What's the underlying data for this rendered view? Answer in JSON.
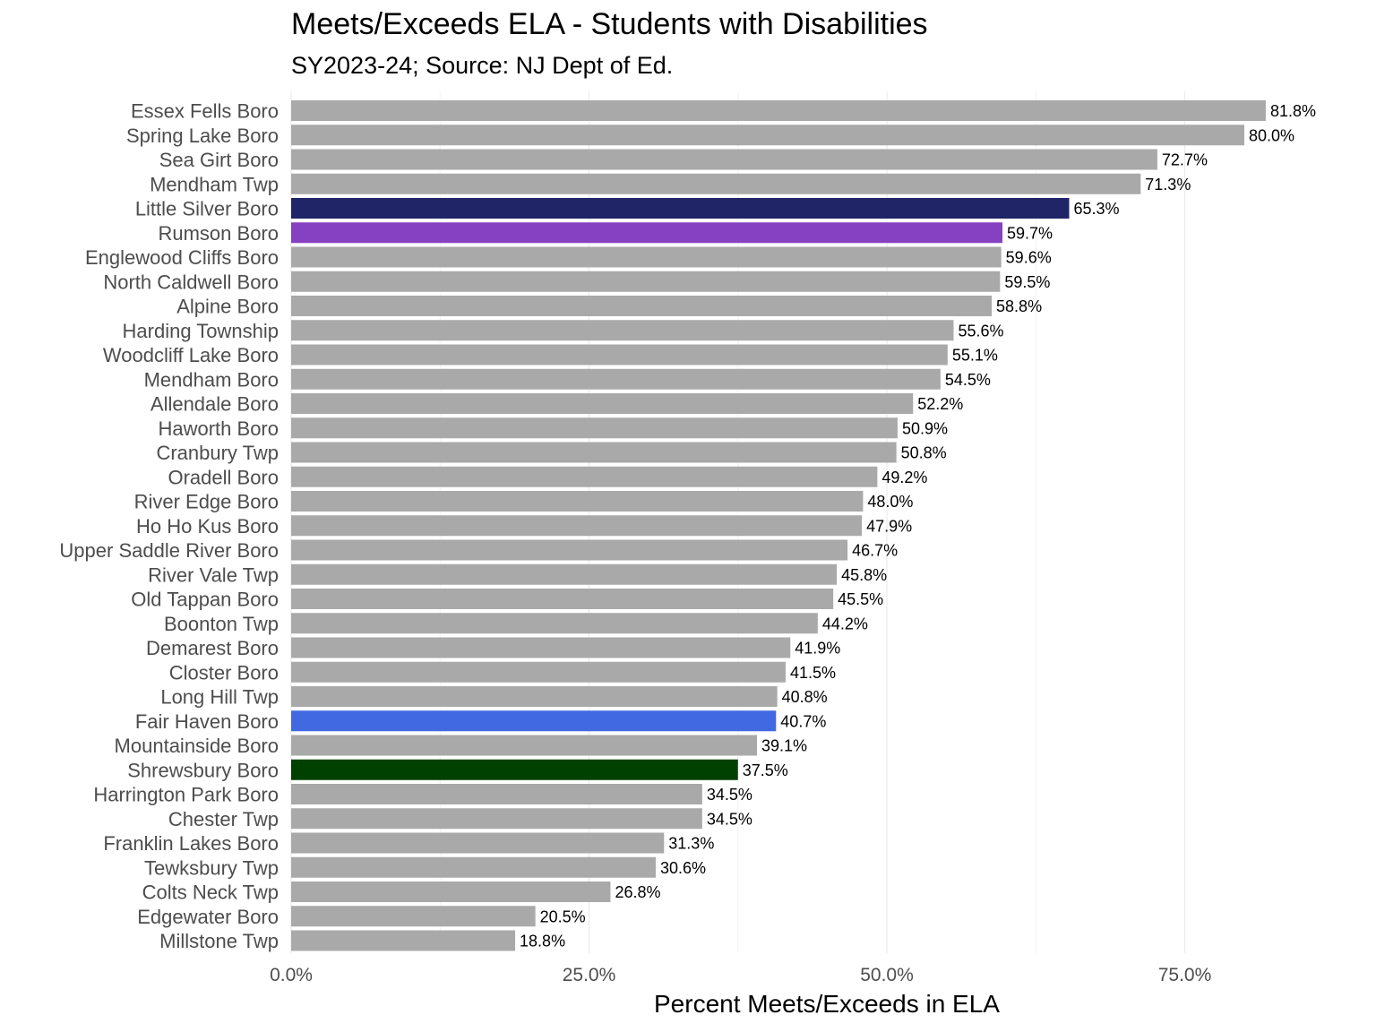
{
  "chart_data": {
    "type": "bar",
    "orientation": "horizontal",
    "title": "Meets/Exceeds ELA - Students with Disabilities",
    "subtitle": "SY2023-24; Source: NJ Dept of Ed.",
    "xlabel": "Percent Meets/Exceeds in ELA",
    "ylabel": "",
    "xlim": [
      0,
      0.85
    ],
    "xticks": [
      0,
      0.25,
      0.5,
      0.75
    ],
    "xtick_labels": [
      "0.0%",
      "25.0%",
      "50.0%",
      "75.0%"
    ],
    "grid": true,
    "legend": "none",
    "default_color": "#a9a9a9",
    "categories": [
      "Essex Fells Boro",
      "Spring Lake Boro",
      "Sea Girt Boro",
      "Mendham Twp",
      "Little Silver Boro",
      "Rumson Boro",
      "Englewood Cliffs Boro",
      "North Caldwell Boro",
      "Alpine Boro",
      "Harding Township",
      "Woodcliff Lake Boro",
      "Mendham Boro",
      "Allendale Boro",
      "Haworth Boro",
      "Cranbury Twp",
      "Oradell Boro",
      "River Edge Boro",
      "Ho Ho Kus Boro",
      "Upper Saddle River Boro",
      "River Vale Twp",
      "Old Tappan Boro",
      "Boonton Twp",
      "Demarest Boro",
      "Closter Boro",
      "Long Hill Twp",
      "Fair Haven Boro",
      "Mountainside Boro",
      "Shrewsbury Boro",
      "Harrington Park Boro",
      "Chester Twp",
      "Franklin Lakes Boro",
      "Tewksbury Twp",
      "Colts Neck Twp",
      "Edgewater Boro",
      "Millstone Twp"
    ],
    "values": [
      0.818,
      0.8,
      0.727,
      0.713,
      0.653,
      0.597,
      0.596,
      0.595,
      0.588,
      0.556,
      0.551,
      0.545,
      0.522,
      0.509,
      0.508,
      0.492,
      0.48,
      0.479,
      0.467,
      0.458,
      0.455,
      0.442,
      0.419,
      0.415,
      0.408,
      0.407,
      0.391,
      0.375,
      0.345,
      0.345,
      0.313,
      0.306,
      0.268,
      0.205,
      0.188
    ],
    "value_labels": [
      "81.8%",
      "80.0%",
      "72.7%",
      "71.3%",
      "65.3%",
      "59.7%",
      "59.6%",
      "59.5%",
      "58.8%",
      "55.6%",
      "55.1%",
      "54.5%",
      "52.2%",
      "50.9%",
      "50.8%",
      "49.2%",
      "48.0%",
      "47.9%",
      "46.7%",
      "45.8%",
      "45.5%",
      "44.2%",
      "41.9%",
      "41.5%",
      "40.8%",
      "40.7%",
      "39.1%",
      "37.5%",
      "34.5%",
      "34.5%",
      "31.3%",
      "30.6%",
      "26.8%",
      "20.5%",
      "18.8%"
    ],
    "highlight_colors": {
      "Little Silver Boro": "#1f2566",
      "Rumson Boro": "#8640c2",
      "Fair Haven Boro": "#4169e1",
      "Shrewsbury Boro": "#004000"
    }
  }
}
